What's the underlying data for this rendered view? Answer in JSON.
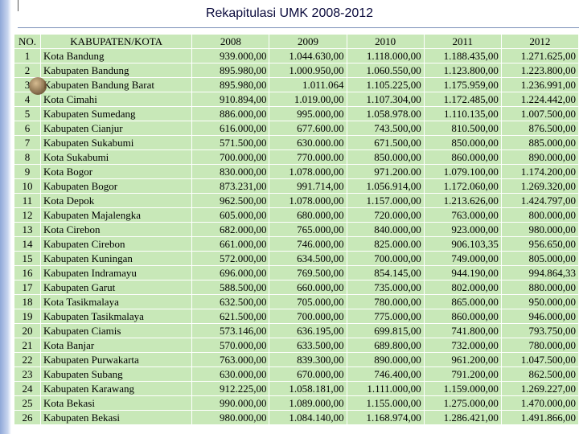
{
  "title": "Rekapitulasi UMK 2008-2012",
  "table": {
    "headers": [
      "NO.",
      "KABUPATEN/KOTA",
      "2008",
      "2009",
      "2010",
      "2011",
      "2012"
    ],
    "rows": [
      [
        "1",
        "Kota Bandung",
        "939.000,00",
        "1.044.630,00",
        "1.118.000,00",
        "1.188.435,00",
        "1.271.625,00"
      ],
      [
        "2",
        "Kabupaten Bandung",
        "895.980,00",
        "1.000.950,00",
        "1.060.550,00",
        "1.123.800,00",
        "1.223.800,00"
      ],
      [
        "3",
        "Kabupaten Bandung Barat",
        "895.980,00",
        "1.011.064",
        "1.105.225,00",
        "1.175.959,00",
        "1.236.991,00"
      ],
      [
        "4",
        "Kota Cimahi",
        "910.894,00",
        "1.019.00,00",
        "1.107.304,00",
        "1.172.485,00",
        "1.224.442,00"
      ],
      [
        "5",
        "Kabupaten Sumedang",
        "886.000,00",
        "995.000,00",
        "1.058.978.00",
        "1.110.135,00",
        "1.007.500,00"
      ],
      [
        "6",
        "Kabupaten Cianjur",
        "616.000,00",
        "677.600.00",
        "743.500,00",
        "810.500,00",
        "876.500,00"
      ],
      [
        "7",
        "Kabupaten Sukabumi",
        "571.500,00",
        "630.000.00",
        "671.500,00",
        "850.000,00",
        "885.000,00"
      ],
      [
        "8",
        "Kota Sukabumi",
        "700.000,00",
        "770.000.00",
        "850.000,00",
        "860.000,00",
        "890.000,00"
      ],
      [
        "9",
        "Kota Bogor",
        "830.000,00",
        "1.078.000,00",
        "971.200.00",
        "1.079.100,00",
        "1.174.200,00"
      ],
      [
        "10",
        "Kabupaten Bogor",
        "873.231,00",
        "991.714,00",
        "1.056.914,00",
        "1.172.060,00",
        "1.269.320,00"
      ],
      [
        "11",
        "Kota Depok",
        "962.500,00",
        "1.078.000,00",
        "1.157.000,00",
        "1.213.626,00",
        "1.424.797,00"
      ],
      [
        "12",
        "Kabupaten Majalengka",
        "605.000,00",
        "680.000,00",
        "720.000,00",
        "763.000,00",
        "800.000,00"
      ],
      [
        "13",
        "Kota Cirebon",
        "682.000,00",
        "765.000,00",
        "840.000,00",
        "923.000,00",
        "980.000,00"
      ],
      [
        "14",
        "Kabupaten Cirebon",
        "661.000,00",
        "746.000,00",
        "825.000.00",
        "906.103,35",
        "956.650,00"
      ],
      [
        "15",
        "Kabupaten Kuningan",
        "572.000,00",
        "634.500,00",
        "700.000,00",
        "749.000,00",
        "805.000,00"
      ],
      [
        "16",
        "Kabupaten Indramayu",
        "696.000,00",
        "769.500,00",
        "854.145,00",
        "944.190,00",
        "994.864,33"
      ],
      [
        "17",
        "Kabupaten Garut",
        "588.500,00",
        "660.000,00",
        "735.000,00",
        "802.000,00",
        "880.000,00"
      ],
      [
        "18",
        "Kota Tasikmalaya",
        "632.500,00",
        "705.000,00",
        "780.000,00",
        "865.000,00",
        "950.000,00"
      ],
      [
        "19",
        "Kabupaten Tasikmalaya",
        "621.500,00",
        "700.000,00",
        "775.000,00",
        "860.000,00",
        "946.000,00"
      ],
      [
        "20",
        "Kabupaten Ciamis",
        "573.146,00",
        "636.195,00",
        "699.815,00",
        "741.800,00",
        "793.750,00"
      ],
      [
        "21",
        "Kota Banjar",
        "570.000,00",
        "633.500,00",
        "689.800,00",
        "732.000,00",
        "780.000,00"
      ],
      [
        "22",
        "Kabupaten Purwakarta",
        "763.000,00",
        "839.300,00",
        "890.000,00",
        "961.200,00",
        "1.047.500,00"
      ],
      [
        "23",
        "Kabupaten Subang",
        "630.000,00",
        "670.000,00",
        "746.400,00",
        "791.200,00",
        "862.500,00"
      ],
      [
        "24",
        "Kabupaten Karawang",
        "912.225,00",
        "1.058.181,00",
        "1.111.000,00",
        "1.159.000,00",
        "1.269.227,00"
      ],
      [
        "25",
        "Kota Bekasi",
        "990.000,00",
        "1.089.000,00",
        "1.155.000,00",
        "1.275.000,00",
        "1.470.000,00"
      ],
      [
        "26",
        "Kabupaten  Bekasi",
        "980.000,00",
        "1.084.140,00",
        "1.168.974,00",
        "1.286.421,00",
        "1.491.866,00"
      ]
    ]
  }
}
